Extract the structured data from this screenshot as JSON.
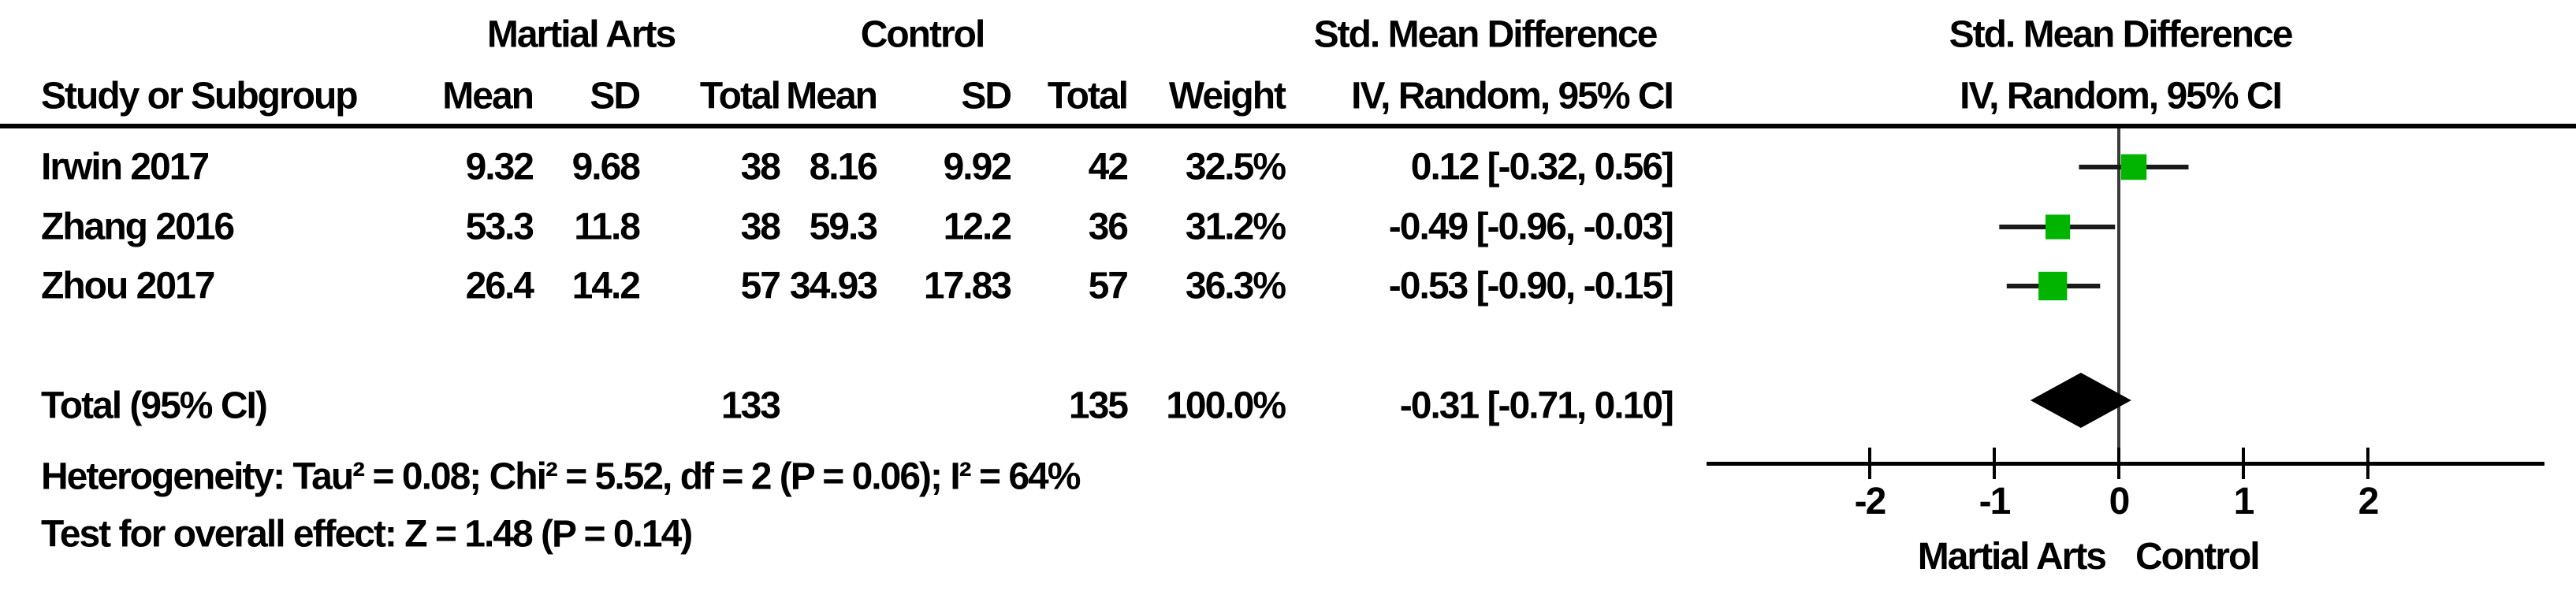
{
  "table": {
    "group1_header": "Martial Arts",
    "group2_header": "Control",
    "smd_header_table": "Std. Mean Difference",
    "method_header_table": "IV, Random, 95% CI",
    "col_study": "Study or Subgroup",
    "col_mean_1": "Mean",
    "col_sd_1": "SD",
    "col_total_1": "Total",
    "col_mean_2": "Mean",
    "col_sd_2": "SD",
    "col_total_2": "Total",
    "col_weight": "Weight",
    "studies": [
      {
        "name": "Irwin 2017",
        "mean": "9.32",
        "sd": "9.68",
        "total": "38",
        "c_mean": "8.16",
        "c_sd": "9.92",
        "c_total": "42",
        "weight": "32.5%",
        "ci_text": "0.12 [-0.32, 0.56]"
      },
      {
        "name": "Zhang 2016",
        "mean": "53.3",
        "sd": "11.8",
        "total": "38",
        "c_mean": "59.3",
        "c_sd": "12.2",
        "c_total": "36",
        "weight": "31.2%",
        "ci_text": "-0.49 [-0.96, -0.03]"
      },
      {
        "name": "Zhou 2017",
        "mean": "26.4",
        "sd": "14.2",
        "total": "57",
        "c_mean": "34.93",
        "c_sd": "17.83",
        "c_total": "57",
        "weight": "36.3%",
        "ci_text": "-0.53 [-0.90, -0.15]"
      }
    ],
    "total_row": {
      "label": "Total (95% CI)",
      "total": "133",
      "c_total": "135",
      "weight": "100.0%",
      "ci_text": "-0.31 [-0.71, 0.10]"
    },
    "heterogeneity": "Heterogeneity: Tau² = 0.08; Chi² = 5.52, df = 2 (P = 0.06); I² = 64%",
    "overall_effect": "Test for overall effect: Z = 1.48 (P = 0.14)"
  },
  "plot_header": {
    "title": "Std. Mean Difference",
    "subtitle": "IV, Random, 95% CI"
  },
  "chart_data": {
    "type": "forest",
    "title": "Std. Mean Difference",
    "subtitle": "IV, Random, 95% CI",
    "effect_measure": "Std. Mean Difference (IV, Random, 95% CI)",
    "studies": [
      {
        "name": "Irwin 2017",
        "smd": 0.12,
        "ci_low": -0.32,
        "ci_high": 0.56,
        "weight_pct": 32.5
      },
      {
        "name": "Zhang 2016",
        "smd": -0.49,
        "ci_low": -0.96,
        "ci_high": -0.03,
        "weight_pct": 31.2
      },
      {
        "name": "Zhou 2017",
        "smd": -0.53,
        "ci_low": -0.9,
        "ci_high": -0.15,
        "weight_pct": 36.3
      }
    ],
    "total": {
      "smd": -0.31,
      "ci_low": -0.71,
      "ci_high": 0.1,
      "total_n_experimental": 133,
      "total_n_control": 135,
      "weight_pct": 100.0
    },
    "x_ticks": [
      -2,
      -1,
      0,
      1,
      2
    ],
    "xlim": [
      -3.3,
      3.4
    ],
    "grid": false,
    "favours_left": "Martial Arts",
    "favours_right": "Control",
    "marker_color": "#00b400",
    "ci_line_color": "#1a1a1a",
    "diamond_color": "#000000",
    "axis_color": "#000000"
  }
}
